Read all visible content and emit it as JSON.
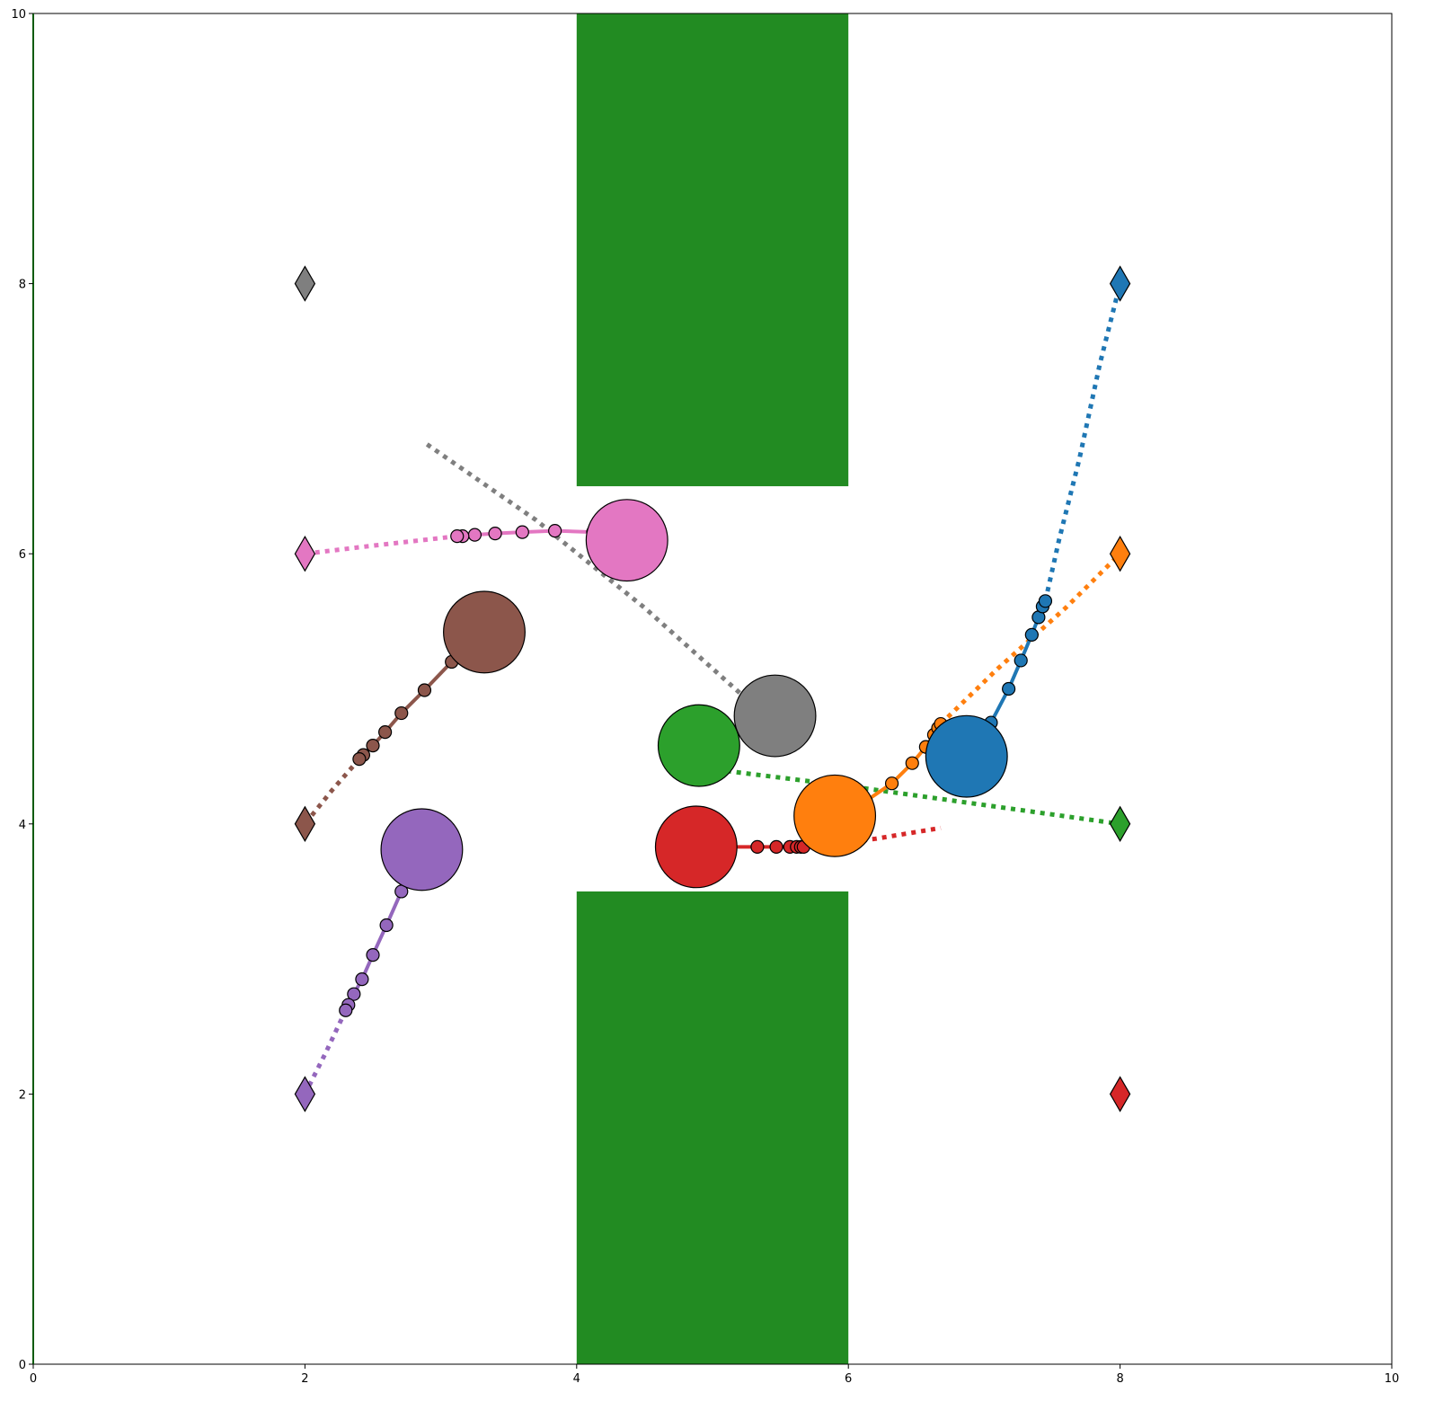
{
  "chart_data": {
    "type": "scatter",
    "title": "",
    "xlabel": "",
    "ylabel": "",
    "xlim": [
      0,
      10
    ],
    "ylim": [
      0,
      10
    ],
    "grid": false,
    "x_ticks": [
      0,
      2,
      4,
      6,
      8,
      10
    ],
    "y_ticks": [
      0,
      2,
      4,
      6,
      8,
      10
    ],
    "x_tick_labels": [
      "0",
      "2",
      "4",
      "6",
      "8",
      "10"
    ],
    "y_tick_labels": [
      "0",
      "2",
      "4",
      "6",
      "8",
      "10"
    ],
    "obstacles": [
      {
        "x": [
          4,
          6
        ],
        "y": [
          6.5,
          10
        ],
        "color": "#228b22"
      },
      {
        "x": [
          4,
          6
        ],
        "y": [
          0,
          3.5
        ],
        "color": "#228b22"
      }
    ],
    "agents": [
      {
        "color": "#1f77b4",
        "radius": 0.3,
        "position": [
          6.87,
          4.5
        ],
        "goal": [
          8,
          8
        ],
        "history": [
          [
            7.05,
            4.75
          ],
          [
            7.18,
            5.0
          ],
          [
            7.27,
            5.21
          ],
          [
            7.35,
            5.4
          ],
          [
            7.4,
            5.53
          ],
          [
            7.43,
            5.61
          ],
          [
            7.45,
            5.65
          ]
        ],
        "plan": [
          [
            7.45,
            5.65
          ],
          [
            7.55,
            6.1
          ],
          [
            7.7,
            6.7
          ],
          [
            7.85,
            7.4
          ],
          [
            8,
            8
          ]
        ]
      },
      {
        "color": "#ff7f0e",
        "radius": 0.3,
        "position": [
          5.9,
          4.06
        ],
        "goal": [
          8,
          6
        ],
        "history": [
          [
            6.13,
            4.17
          ],
          [
            6.32,
            4.3
          ],
          [
            6.47,
            4.45
          ],
          [
            6.57,
            4.57
          ],
          [
            6.63,
            4.66
          ],
          [
            6.66,
            4.71
          ],
          [
            6.68,
            4.74
          ]
        ],
        "plan": [
          [
            6.68,
            4.74
          ],
          [
            7.1,
            5.15
          ],
          [
            7.6,
            5.6
          ],
          [
            8,
            6
          ]
        ]
      },
      {
        "color": "#2ca02c",
        "radius": 0.3,
        "position": [
          4.9,
          4.58
        ],
        "goal": [
          8,
          4
        ],
        "history": [
          [
            4.93,
            4.49
          ],
          [
            4.94,
            4.45
          ],
          [
            4.95,
            4.43
          ],
          [
            4.96,
            4.41
          ]
        ],
        "plan": [
          [
            4.96,
            4.41
          ],
          [
            6.0,
            4.28
          ],
          [
            7.0,
            4.14
          ],
          [
            8,
            4
          ]
        ]
      },
      {
        "color": "#d62728",
        "radius": 0.3,
        "position": [
          4.88,
          3.83
        ],
        "goal": [
          8,
          2
        ],
        "history": [
          [
            5.13,
            3.83
          ],
          [
            5.33,
            3.83
          ],
          [
            5.47,
            3.83
          ],
          [
            5.57,
            3.83
          ],
          [
            5.62,
            3.83
          ],
          [
            5.65,
            3.83
          ],
          [
            5.67,
            3.83
          ]
        ],
        "plan": [
          [
            5.67,
            3.83
          ],
          [
            6.2,
            3.89
          ],
          [
            6.68,
            3.97
          ]
        ]
      },
      {
        "color": "#9467bd",
        "radius": 0.3,
        "position": [
          2.86,
          3.81
        ],
        "goal": [
          2,
          2
        ],
        "history": [
          [
            2.71,
            3.5
          ],
          [
            2.6,
            3.25
          ],
          [
            2.5,
            3.03
          ],
          [
            2.42,
            2.85
          ],
          [
            2.36,
            2.74
          ],
          [
            2.32,
            2.66
          ],
          [
            2.3,
            2.62
          ]
        ],
        "plan": [
          [
            2.3,
            2.62
          ],
          [
            2.15,
            2.3
          ],
          [
            2,
            2
          ]
        ]
      },
      {
        "color": "#8c564b",
        "radius": 0.3,
        "position": [
          3.32,
          5.42
        ],
        "goal": [
          2,
          4
        ],
        "history": [
          [
            3.08,
            5.2
          ],
          [
            2.88,
            4.99
          ],
          [
            2.71,
            4.82
          ],
          [
            2.59,
            4.68
          ],
          [
            2.5,
            4.58
          ],
          [
            2.43,
            4.51
          ],
          [
            2.4,
            4.48
          ]
        ],
        "plan": [
          [
            2.4,
            4.48
          ],
          [
            2.2,
            4.25
          ],
          [
            2,
            4
          ]
        ]
      },
      {
        "color": "#e377c2",
        "radius": 0.3,
        "position": [
          4.37,
          6.1
        ],
        "goal": [
          2,
          6
        ],
        "history": [
          [
            4.12,
            6.16
          ],
          [
            3.84,
            6.17
          ],
          [
            3.6,
            6.16
          ],
          [
            3.4,
            6.15
          ],
          [
            3.25,
            6.14
          ],
          [
            3.16,
            6.13
          ],
          [
            3.12,
            6.13
          ]
        ],
        "plan": [
          [
            3.12,
            6.13
          ],
          [
            2.5,
            6.06
          ],
          [
            2,
            6
          ]
        ]
      },
      {
        "color": "#7f7f7f",
        "radius": 0.3,
        "position": [
          5.46,
          4.8
        ],
        "goal": [
          2,
          8
        ],
        "history": [
          [
            5.44,
            4.81
          ],
          [
            5.45,
            4.8
          ],
          [
            5.46,
            4.8
          ]
        ],
        "plan": [
          [
            5.2,
            4.97
          ],
          [
            4.5,
            5.6
          ],
          [
            3.7,
            6.25
          ],
          [
            2.87,
            6.83
          ]
        ]
      }
    ]
  }
}
